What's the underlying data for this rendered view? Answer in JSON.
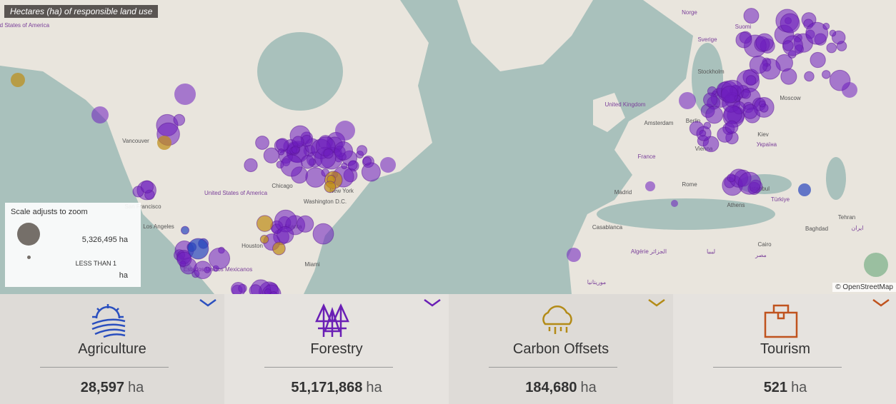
{
  "header": {
    "title": "Hectares (ha) of responsible land use"
  },
  "map": {
    "labels": [
      "United States of America",
      "Vancouver",
      "San Francisco",
      "Los Angeles",
      "United States of America",
      "Chicago",
      "New York",
      "Washington D.C.",
      "Atlanta",
      "Houston",
      "Miami",
      "Estados Unidos Mexicanos",
      "Norge",
      "Suomi",
      "Sverige",
      "Stockholm",
      "United Kingdom",
      "Amsterdam",
      "Berlin",
      "Kiev",
      "Україна",
      "France",
      "Vienna",
      "Madrid",
      "Rome",
      "Istanbul",
      "Athens",
      "Türkiye",
      "Casablanca",
      "Algérie الجزائر",
      "ليبيا",
      "مصر",
      "Cairo",
      "Baghdad",
      "Tehran",
      "ایران",
      "Moscow",
      "موريتانيا"
    ],
    "attribution": "© OpenStreetMap"
  },
  "legend": {
    "title": "Scale adjusts to zoom",
    "max": "5,326,495 ha",
    "min": "LESS THAN 1",
    "min_unit": "ha"
  },
  "panels": [
    {
      "name": "Agriculture",
      "value": "28,597",
      "unit": "ha"
    },
    {
      "name": "Forestry",
      "value": "51,171,868",
      "unit": "ha"
    },
    {
      "name": "Carbon Offsets",
      "value": "184,680",
      "unit": "ha"
    },
    {
      "name": "Tourism",
      "value": "521",
      "unit": "ha"
    }
  ]
}
